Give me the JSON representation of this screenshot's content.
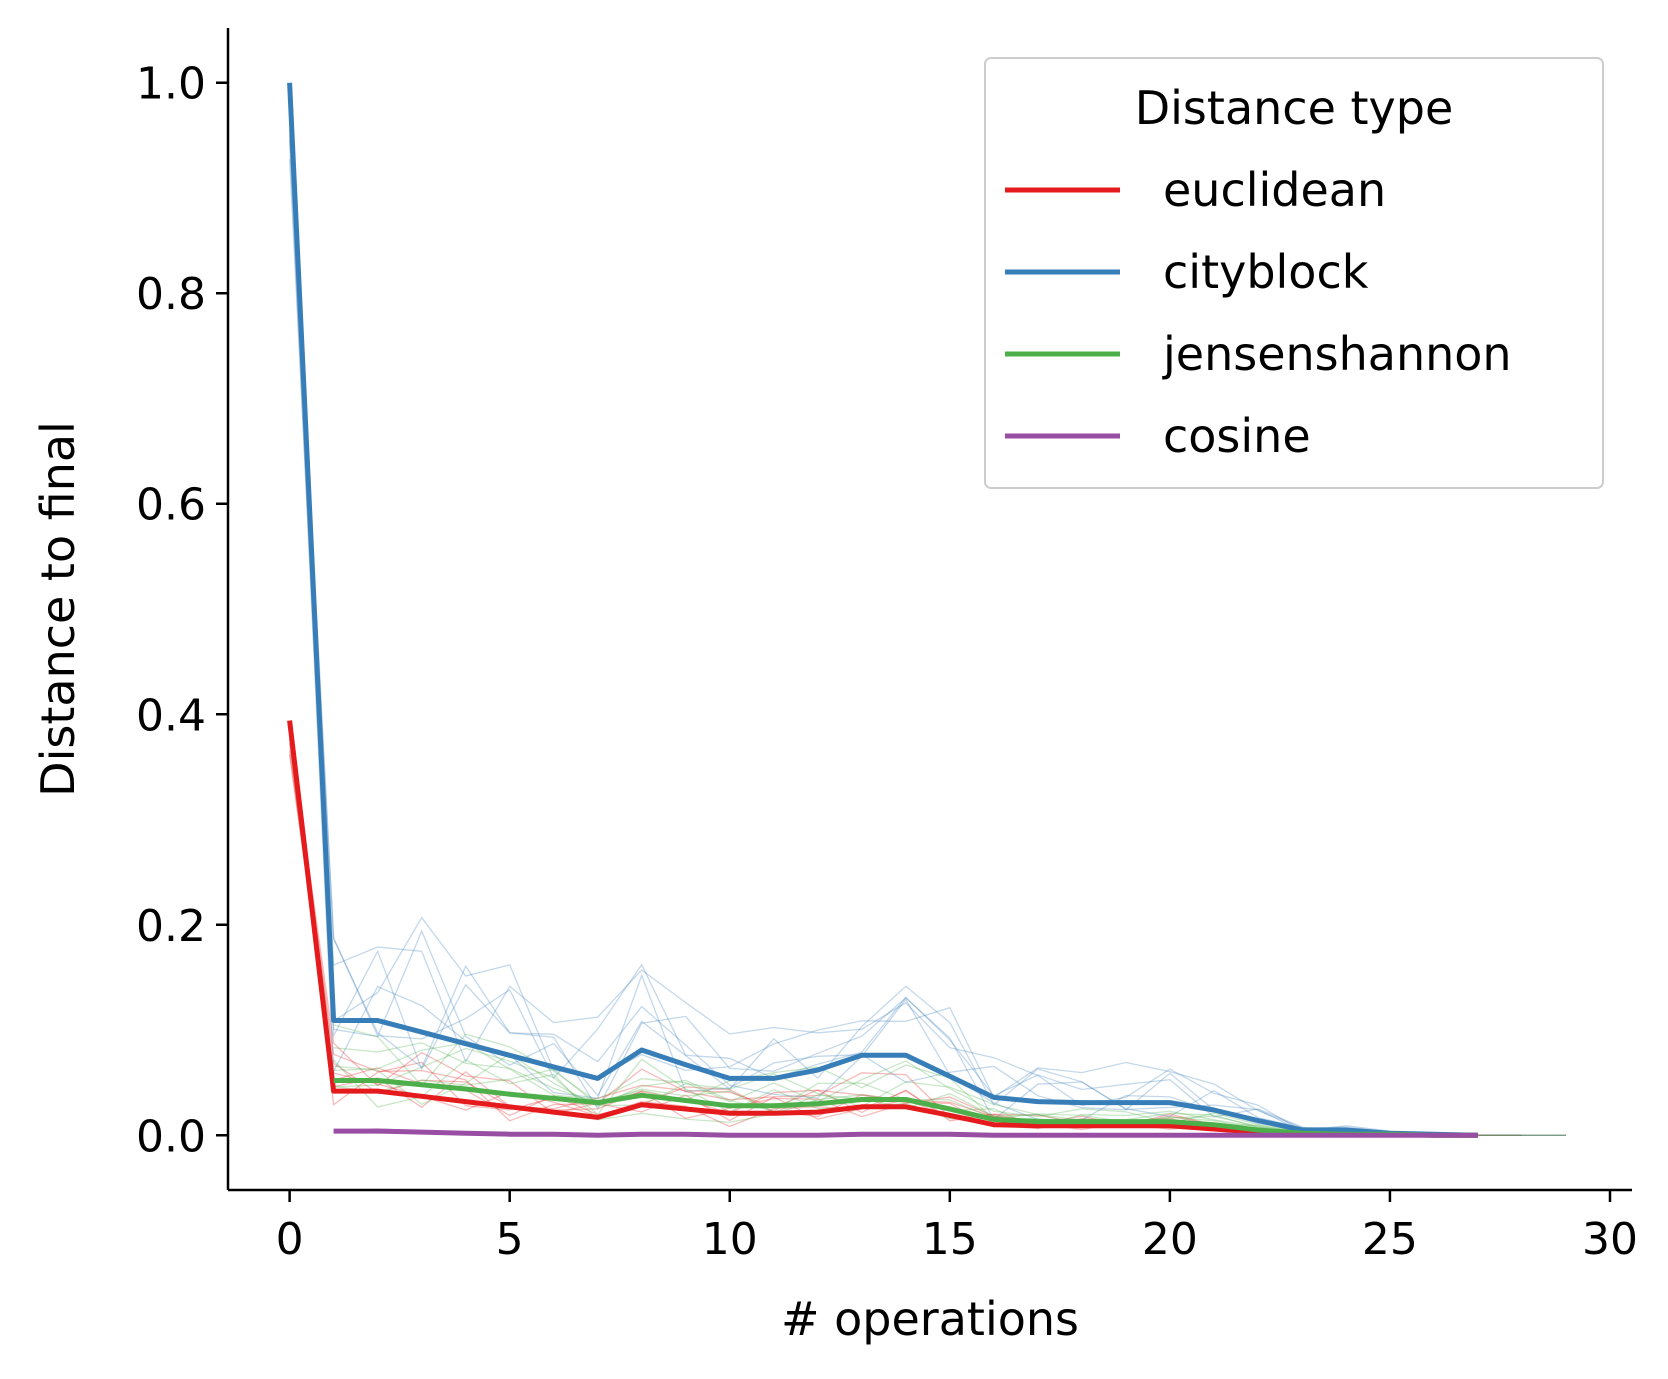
{
  "chart_data": {
    "type": "line",
    "xlabel": "# operations",
    "ylabel": "Distance to final",
    "xlim": [
      -1.4,
      30.5
    ],
    "ylim": [
      -0.052,
      1.052
    ],
    "xticks": [
      0,
      5,
      10,
      15,
      20,
      25,
      30
    ],
    "yticks": [
      0.0,
      0.2,
      0.4,
      0.6,
      0.8,
      1.0
    ],
    "xtick_labels": [
      "0",
      "5",
      "10",
      "15",
      "20",
      "25",
      "30"
    ],
    "ytick_labels": [
      "0.0",
      "0.2",
      "0.4",
      "0.6",
      "0.8",
      "1.0"
    ],
    "grid": false,
    "legend": {
      "title": "Distance type",
      "placement": "top-right",
      "entries": [
        "euclidean",
        "cityblock",
        "jensenshannon",
        "cosine"
      ]
    },
    "series": [
      {
        "name": "euclidean",
        "color": "#e41a1c",
        "x": [
          0,
          1,
          2,
          3,
          4,
          5,
          6,
          7,
          8,
          9,
          10,
          11,
          12,
          13,
          14,
          15,
          16,
          17,
          18,
          19,
          20,
          21,
          22,
          23,
          24,
          25,
          26,
          27
        ],
        "y": [
          0.394,
          0.042,
          0.042,
          0.037,
          0.032,
          0.027,
          0.022,
          0.017,
          0.029,
          0.025,
          0.021,
          0.021,
          0.022,
          0.027,
          0.027,
          0.019,
          0.01,
          0.009,
          0.009,
          0.009,
          0.009,
          0.006,
          0.003,
          0.002,
          0.001,
          0.001,
          0.0,
          0.0
        ]
      },
      {
        "name": "cityblock",
        "color": "#377eb8",
        "x": [
          0,
          1,
          2,
          3,
          4,
          5,
          6,
          7,
          8,
          9,
          10,
          11,
          12,
          13,
          14,
          15,
          16,
          17,
          18,
          19,
          20,
          21,
          22,
          23,
          24,
          25,
          26,
          27
        ],
        "y": [
          1.0,
          0.109,
          0.109,
          0.098,
          0.087,
          0.076,
          0.065,
          0.054,
          0.081,
          0.067,
          0.054,
          0.054,
          0.062,
          0.076,
          0.076,
          0.056,
          0.036,
          0.032,
          0.031,
          0.031,
          0.031,
          0.024,
          0.014,
          0.005,
          0.005,
          0.002,
          0.001,
          0.0
        ]
      },
      {
        "name": "jensenshannon",
        "color": "#4daf4a",
        "x": [
          1,
          2,
          3,
          4,
          5,
          6,
          7,
          8,
          9,
          10,
          11,
          12,
          13,
          14,
          15,
          16,
          17,
          18,
          19,
          20,
          21,
          22,
          23,
          24,
          25,
          26,
          27
        ],
        "y": [
          0.052,
          0.052,
          0.048,
          0.044,
          0.039,
          0.035,
          0.031,
          0.038,
          0.033,
          0.028,
          0.028,
          0.03,
          0.034,
          0.034,
          0.025,
          0.015,
          0.013,
          0.013,
          0.013,
          0.013,
          0.01,
          0.005,
          0.002,
          0.001,
          0.001,
          0.0,
          0.0
        ]
      },
      {
        "name": "cosine",
        "color": "#984ea3",
        "x": [
          1,
          2,
          3,
          4,
          5,
          6,
          7,
          8,
          9,
          10,
          11,
          12,
          13,
          14,
          15,
          16,
          17,
          18,
          19,
          20,
          21,
          22,
          23,
          24,
          25,
          26,
          27
        ],
        "y": [
          0.004,
          0.004,
          0.003,
          0.002,
          0.001,
          0.001,
          0.0,
          0.001,
          0.001,
          0.0,
          0.0,
          0.0,
          0.001,
          0.001,
          0.001,
          0.0,
          0.0,
          0.0,
          0.0,
          0.0,
          0.0,
          0.0,
          0.0,
          0.0,
          0.0,
          0.0,
          0.0
        ]
      }
    ]
  }
}
